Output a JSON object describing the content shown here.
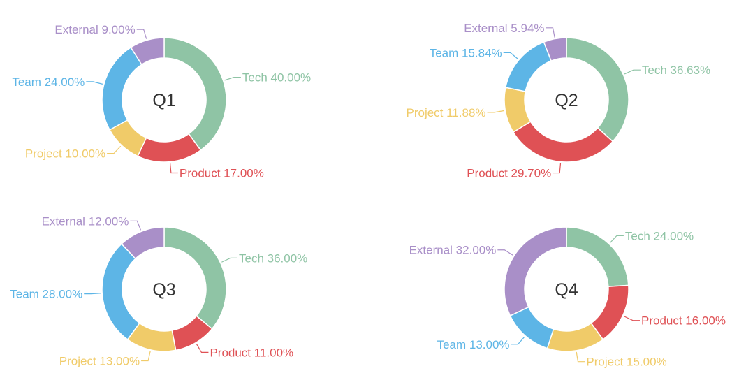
{
  "chart_data": [
    {
      "type": "pie",
      "title": "Q1",
      "slices": [
        {
          "name": "Tech",
          "value": 40.0,
          "label": "Tech 40.00%",
          "color": "#8fc4a5"
        },
        {
          "name": "Product",
          "value": 17.0,
          "label": "Product 17.00%",
          "color": "#df5155"
        },
        {
          "name": "Project",
          "value": 10.0,
          "label": "Project 10.00%",
          "color": "#f0cb69"
        },
        {
          "name": "Team",
          "value": 24.0,
          "label": "Team 24.00%",
          "color": "#5db5e6"
        },
        {
          "name": "External",
          "value": 9.0,
          "label": "External 9.00%",
          "color": "#a98fc8"
        }
      ]
    },
    {
      "type": "pie",
      "title": "Q2",
      "slices": [
        {
          "name": "Tech",
          "value": 36.63,
          "label": "Tech 36.63%",
          "color": "#8fc4a5"
        },
        {
          "name": "Product",
          "value": 29.7,
          "label": "Product 29.70%",
          "color": "#df5155"
        },
        {
          "name": "Project",
          "value": 11.88,
          "label": "Project 11.88%",
          "color": "#f0cb69"
        },
        {
          "name": "Team",
          "value": 15.84,
          "label": "Team 15.84%",
          "color": "#5db5e6"
        },
        {
          "name": "External",
          "value": 5.94,
          "label": "External 5.94%",
          "color": "#a98fc8"
        }
      ]
    },
    {
      "type": "pie",
      "title": "Q3",
      "slices": [
        {
          "name": "Tech",
          "value": 36.0,
          "label": "Tech 36.00%",
          "color": "#8fc4a5"
        },
        {
          "name": "Product",
          "value": 11.0,
          "label": "Product 11.00%",
          "color": "#df5155"
        },
        {
          "name": "Project",
          "value": 13.0,
          "label": "Project 13.00%",
          "color": "#f0cb69"
        },
        {
          "name": "Team",
          "value": 28.0,
          "label": "Team 28.00%",
          "color": "#5db5e6"
        },
        {
          "name": "External",
          "value": 12.0,
          "label": "External 12.00%",
          "color": "#a98fc8"
        }
      ]
    },
    {
      "type": "pie",
      "title": "Q4",
      "slices": [
        {
          "name": "Tech",
          "value": 24.0,
          "label": "Tech 24.00%",
          "color": "#8fc4a5"
        },
        {
          "name": "Product",
          "value": 16.0,
          "label": "Product 16.00%",
          "color": "#df5155"
        },
        {
          "name": "Project",
          "value": 15.0,
          "label": "Project 15.00%",
          "color": "#f0cb69"
        },
        {
          "name": "Team",
          "value": 13.0,
          "label": "Team 13.00%",
          "color": "#5db5e6"
        },
        {
          "name": "External",
          "value": 32.0,
          "label": "External 32.00%",
          "color": "#a98fc8"
        }
      ]
    }
  ]
}
